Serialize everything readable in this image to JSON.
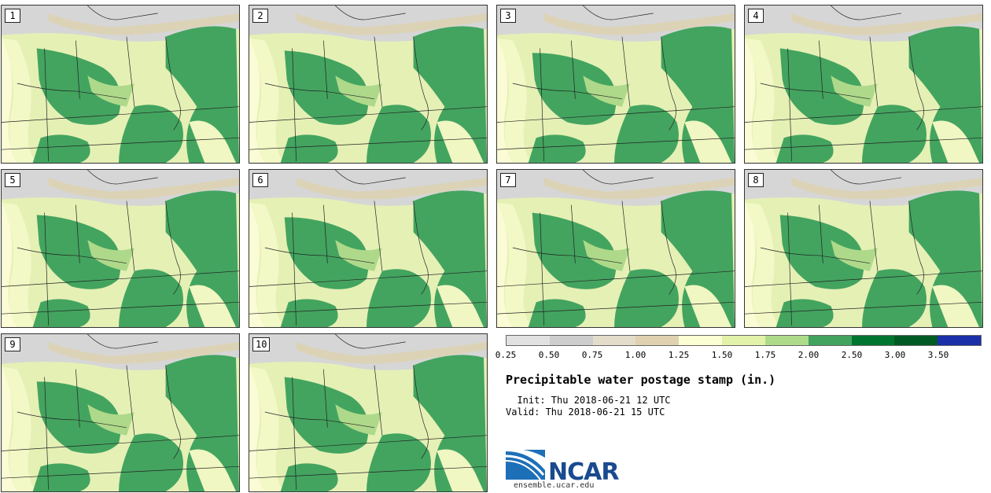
{
  "panels": [
    {
      "label": "1"
    },
    {
      "label": "2"
    },
    {
      "label": "3"
    },
    {
      "label": "4"
    },
    {
      "label": "5"
    },
    {
      "label": "6"
    },
    {
      "label": "7"
    },
    {
      "label": "8"
    },
    {
      "label": "9"
    },
    {
      "label": "10"
    }
  ],
  "legend": {
    "colors": [
      "#e1e1e1",
      "#cdcdcd",
      "#e4dccb",
      "#e0d2b0",
      "#fbfdd3",
      "#e2f2a9",
      "#aedb8a",
      "#41a35d",
      "#00752f",
      "#005a24",
      "#1a2fa8"
    ],
    "ticks": [
      "0.25",
      "0.50",
      "0.75",
      "1.00",
      "1.25",
      "1.50",
      "1.75",
      "2.00",
      "2.50",
      "3.00",
      "3.50"
    ]
  },
  "title": "Precipitable water postage stamp (in.)",
  "init_text": "  Init: Thu 2018-06-21 12 UTC",
  "valid_text": "Valid: Thu 2018-06-21 15 UTC",
  "logo": {
    "text": "NCAR",
    "url": "ensemble.ucar.edu"
  }
}
